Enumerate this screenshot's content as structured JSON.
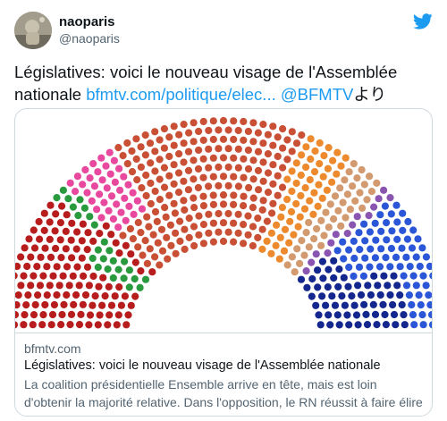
{
  "author": {
    "display_name": "naoparis",
    "handle": "@naoparis"
  },
  "icons": {
    "brand": "twitter-bird-icon",
    "avatar": "user-avatar"
  },
  "tweet": {
    "text": "Législatives: voici le nouveau visage de l'Assemblée nationale ",
    "link": "bfmtv.com/politique/elec...",
    "space": " ",
    "mention": "@BFMTV",
    "suffix": "より"
  },
  "card": {
    "domain": "bfmtv.com",
    "title": "Législatives: voici le nouveau visage de l'Assemblée nationale",
    "description": "La coalition présidentielle Ensemble arrive en tête, mais est loin d'obtenir la majorité relative. Dans l'opposition, le RN réussit à faire élire plus de ..."
  },
  "colors": {
    "brand_blue": "#1d9bf0",
    "text": "#0f1419",
    "muted": "#536471",
    "border": "#cfd9de",
    "hemicycle": [
      "#b81d1d",
      "#2a9a3e",
      "#e8489d",
      "#c94f35",
      "#ee8a2e",
      "#d29a6e",
      "#8a55b0",
      "#2b56d8",
      "#14278e"
    ]
  }
}
